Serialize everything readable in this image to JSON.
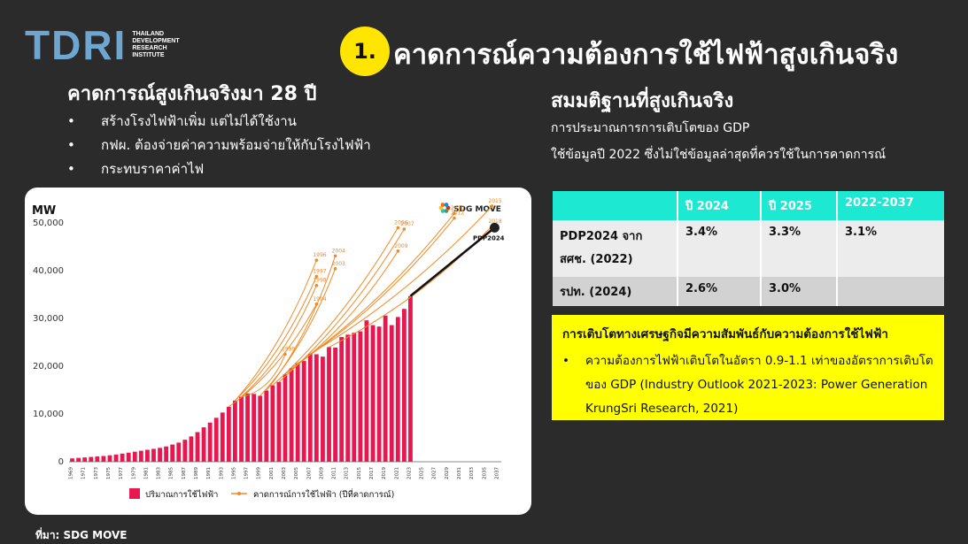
{
  "logo": {
    "word": "TDRI",
    "subtitle": [
      "THAILAND",
      "DEVELOPMENT",
      "RESEARCH",
      "INSTITUTE"
    ]
  },
  "header": {
    "number": "1.",
    "title": "คาดการณ์ความต้องการใช้ไฟฟ้าสูงเกินจริง"
  },
  "left": {
    "heading": "คาดการณ์สูงเกินจริงมา 28 ปี",
    "bullets": [
      "สร้างโรงไฟฟ้าเพิ่ม แต่ไม่ได้ใช้งาน",
      "กฟผ. ต้องจ่ายค่าความพร้อมจ่ายให้กับโรงไฟฟ้า",
      "กระทบราคาค่าไฟ"
    ]
  },
  "right": {
    "heading": "สมมติฐานที่สูงเกินจริง",
    "line1": "การประมาณการการเติบโตของ GDP",
    "line2": "ใช้ข้อมูลปี 2022 ซึ่งไม่ใช่ข้อมูลล่าสุดที่ควรใช้ในการคาดการณ์",
    "table": {
      "headers": [
        "",
        "ปี 2024",
        "ปี 2025",
        "2022-2037"
      ],
      "rows": [
        [
          "PDP2024 จาก สศช. (2022)",
          "3.4%",
          "3.3%",
          "3.1%"
        ],
        [
          "รปท. (2024)",
          "2.6%",
          "3.0%",
          ""
        ]
      ]
    },
    "box": {
      "title": "การเติบโตทางเศรษฐกิจมีความสัมพันธ์กับความต้องการใช้ไฟฟ้า",
      "bullet": "ความต้องการไฟฟ้าเติบโตในอัตรา 0.9-1.1 เท่าของอัตราการเติบโตของ GDP (Industry Outlook 2021-2023: Power Generation KrungSri Research, 2021)"
    }
  },
  "source": "ที่มา: SDG MOVE",
  "colors": {
    "bg": "#2b2b2b",
    "logo_blue": "#6ea6cf",
    "yellow": "#ffe500",
    "teal": "#1de9d3",
    "bar": "#e8174f",
    "forecast": "#f08a24"
  },
  "chart_data": {
    "type": "bar",
    "unit": "MW",
    "brand": "SDG MOVE",
    "ylim": [
      0,
      50000
    ],
    "yticks": [
      "0",
      "10,000",
      "20,000",
      "30,000",
      "40,000",
      "50,000"
    ],
    "years": [
      1969,
      1970,
      1971,
      1972,
      1973,
      1974,
      1975,
      1976,
      1977,
      1978,
      1979,
      1980,
      1981,
      1982,
      1983,
      1984,
      1985,
      1986,
      1987,
      1988,
      1989,
      1990,
      1991,
      1992,
      1993,
      1994,
      1995,
      1996,
      1997,
      1998,
      1999,
      2000,
      2001,
      2002,
      2003,
      2004,
      2005,
      2006,
      2007,
      2008,
      2009,
      2010,
      2011,
      2012,
      2013,
      2014,
      2015,
      2016,
      2017,
      2018,
      2019,
      2020,
      2021,
      2022,
      2023
    ],
    "xtick_labels": [
      "1969",
      "1971",
      "1973",
      "1975",
      "1977",
      "1979",
      "1981",
      "1983",
      "1985",
      "1987",
      "1989",
      "1991",
      "1993",
      "1995",
      "1997",
      "1999",
      "2001",
      "2003",
      "2005",
      "2007",
      "2009",
      "2011",
      "2013",
      "2015",
      "2017",
      "2019",
      "2021",
      "2023",
      "2025",
      "2027",
      "2029",
      "2031",
      "2033",
      "2035",
      "2037"
    ],
    "x_range": [
      1969,
      2037
    ],
    "series": [
      {
        "name": "ปริมาณการใช้ไฟฟ้า",
        "values": [
          700,
          800,
          900,
          1000,
          1100,
          1200,
          1350,
          1500,
          1700,
          1900,
          2100,
          2300,
          2500,
          2700,
          2900,
          3200,
          3600,
          4000,
          4600,
          5300,
          6200,
          7200,
          8200,
          9200,
          10300,
          11500,
          12800,
          13600,
          14300,
          14200,
          13800,
          14900,
          16000,
          16700,
          18300,
          19600,
          20600,
          21100,
          22600,
          22500,
          22000,
          24000,
          23900,
          26100,
          26600,
          27000,
          27300,
          29600,
          28600,
          28300,
          30600,
          28600,
          30300,
          32000,
          34700
        ]
      },
      {
        "name": "คาดการณ์การใช้ไฟฟ้า (ปีที่คาดการณ์)",
        "type": "line"
      }
    ],
    "forecast_labels": [
      {
        "label": "1994",
        "year": 2008,
        "value": 33000
      },
      {
        "label": "1996",
        "year": 2008,
        "value": 42200
      },
      {
        "label": "1997",
        "year": 2008,
        "value": 38800
      },
      {
        "label": "1998",
        "year": 2008,
        "value": 36900
      },
      {
        "label": "1999",
        "year": 2003,
        "value": 22500
      },
      {
        "label": "2003",
        "year": 2011,
        "value": 40400
      },
      {
        "label": "2004",
        "year": 2011,
        "value": 43100
      },
      {
        "label": "2006",
        "year": 2021,
        "value": 49000
      },
      {
        "label": "2007",
        "year": 2022,
        "value": 48700
      },
      {
        "label": "2009",
        "year": 2021,
        "value": 44100
      },
      {
        "label": "2010",
        "year": 2030,
        "value": 52000
      },
      {
        "label": "2012",
        "year": 2030,
        "value": 51000
      },
      {
        "label": "2015",
        "year": 2036,
        "value": 53500
      },
      {
        "label": "2018",
        "year": 2036,
        "value": 49300
      }
    ],
    "pdp_line": {
      "label": "PDP2024",
      "start": [
        2023,
        34700
      ],
      "end": [
        2037,
        49000
      ]
    }
  }
}
